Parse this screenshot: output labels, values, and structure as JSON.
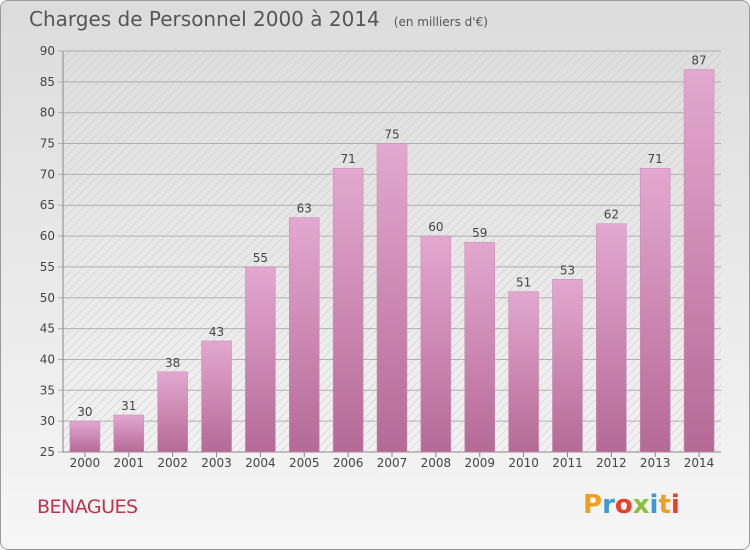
{
  "header": {
    "title": "Charges de Personnel 2000 à 2014",
    "unit": "(en milliers d'€)"
  },
  "footer": {
    "commune": "BENAGUES",
    "logo_text": "Proxiti",
    "logo_letters": [
      "P",
      "r",
      "o",
      "x",
      "i",
      "t",
      "i"
    ],
    "logo_colors": [
      "#f0a020",
      "#3a9ad8",
      "#e8402a",
      "#8ac040",
      "#3a9ad8",
      "#f0a020",
      "#e8402a"
    ]
  },
  "colors": {
    "bar_top": "#e3a8cf",
    "bar_bottom": "#b56a96",
    "grid": "#b0b0b0",
    "axis_text": "#444444",
    "commune": "#c03050"
  },
  "chart_data": {
    "type": "bar",
    "categories": [
      "2000",
      "2001",
      "2002",
      "2003",
      "2004",
      "2005",
      "2006",
      "2007",
      "2008",
      "2009",
      "2010",
      "2011",
      "2012",
      "2013",
      "2014"
    ],
    "values": [
      30,
      31,
      38,
      43,
      55,
      63,
      71,
      75,
      60,
      59,
      51,
      53,
      62,
      71,
      87
    ],
    "title": "Charges de Personnel 2000 à 2014",
    "subtitle": "(en milliers d'€)",
    "ylim": [
      25,
      90
    ],
    "yticks": [
      25,
      30,
      35,
      40,
      45,
      50,
      55,
      60,
      65,
      70,
      75,
      80,
      85,
      90
    ],
    "grid": true,
    "data_labels": true
  }
}
